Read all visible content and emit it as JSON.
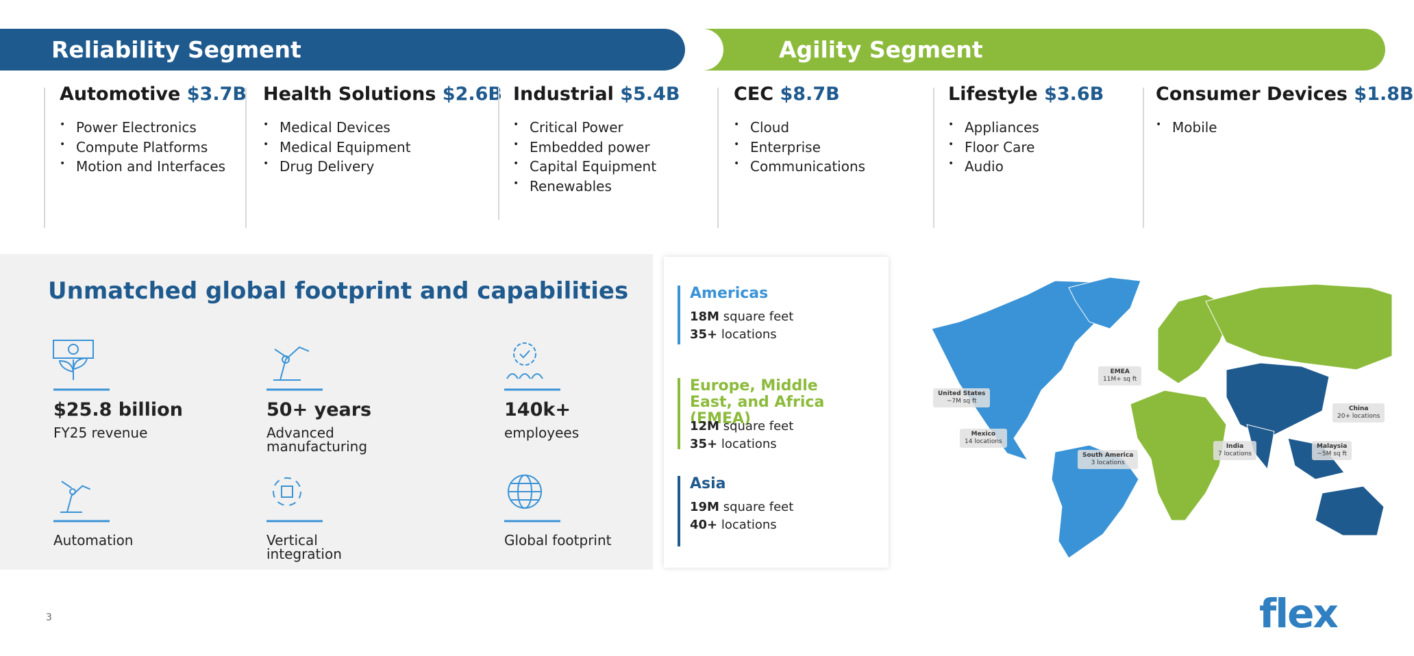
{
  "segments": [
    {
      "title": "Reliability Segment",
      "divisions": [
        {
          "name": "Automotive",
          "revenue": "$3.7B",
          "items": [
            "Power Electronics",
            "Compute Platforms",
            "Motion and Interfaces"
          ]
        },
        {
          "name": "Health Solutions",
          "revenue": "$2.6B",
          "items": [
            "Medical Devices",
            "Medical Equipment",
            "Drug Delivery"
          ]
        },
        {
          "name": "Industrial",
          "revenue": "$5.4B",
          "items": [
            "Critical Power",
            "Embedded power",
            "Capital Equipment",
            "Renewables"
          ]
        }
      ]
    },
    {
      "title": "Agility Segment",
      "divisions": [
        {
          "name": "CEC",
          "revenue": "$8.7B",
          "items": [
            "Cloud",
            "Enterprise",
            "Communications"
          ]
        },
        {
          "name": "Lifestyle",
          "revenue": "$3.6B",
          "items": [
            "Appliances",
            "Floor Care",
            "Audio"
          ]
        },
        {
          "name": "Consumer Devices",
          "revenue": "$1.8B",
          "items": [
            "Mobile"
          ]
        }
      ]
    }
  ],
  "footprint": {
    "title": "Unmatched global footprint and capabilities",
    "stats": [
      {
        "value": "$25.8 billion",
        "label": "FY25 revenue"
      },
      {
        "value": "50+ years",
        "label": "Advanced manufacturing"
      },
      {
        "value": "140k+",
        "label": "employees"
      },
      {
        "label": "Automation"
      },
      {
        "label": "Vertical integration"
      },
      {
        "label": "Global footprint"
      }
    ]
  },
  "regions": [
    {
      "name": "Americas",
      "lines": [
        {
          "bold": "18M",
          "text": "square feet"
        },
        {
          "bold": "35+",
          "text": "locations"
        }
      ]
    },
    {
      "name": "Europe, Middle East, and Africa (EMEA)",
      "lines": [
        {
          "bold": "12M",
          "text": "square feet"
        },
        {
          "bold": "35+",
          "text": "locations"
        }
      ]
    },
    {
      "name": "Asia",
      "lines": [
        {
          "bold": "19M",
          "text": "square feet"
        },
        {
          "bold": "40+",
          "text": "locations"
        }
      ]
    }
  ],
  "map_labels": [
    {
      "name": "United States",
      "detail": "~7M sq ft"
    },
    {
      "name": "Mexico",
      "detail": "14 locations"
    },
    {
      "name": "South America",
      "detail": "3 locations"
    },
    {
      "name": "EMEA",
      "detail": "11M+ sq ft"
    },
    {
      "name": "India",
      "detail": "7 locations"
    },
    {
      "name": "China",
      "detail": "20+ locations"
    },
    {
      "name": "Malaysia",
      "detail": "~5M sq ft"
    }
  ],
  "page_number": "3",
  "logo": "flex"
}
